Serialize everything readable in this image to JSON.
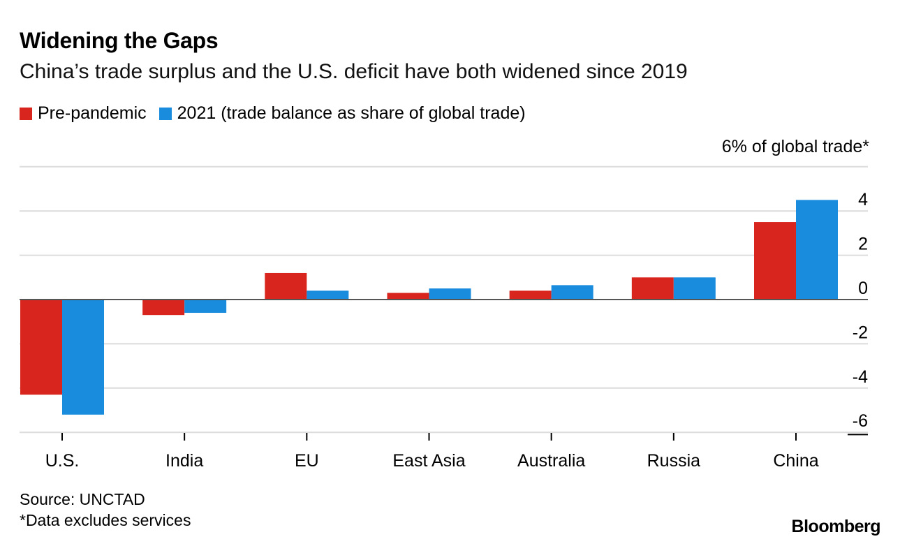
{
  "title": "Widening the Gaps",
  "subtitle": "China’s trade surplus and the U.S. deficit have both widened since 2019",
  "legend": [
    {
      "label": "Pre-pandemic",
      "color": "#d8261e"
    },
    {
      "label": "2021 (trade balance as share of global trade)",
      "color": "#1a8cdd"
    }
  ],
  "unit_label": "6% of global trade*",
  "source": "Source: UNCTAD",
  "footnote": "*Data excludes services",
  "brand": "Bloomberg",
  "chart_data": {
    "type": "bar",
    "categories": [
      "U.S.",
      "India",
      "EU",
      "East Asia",
      "Australia",
      "Russia",
      "China"
    ],
    "series": [
      {
        "name": "Pre-pandemic",
        "color": "#d8261e",
        "values": [
          -4.3,
          -0.7,
          1.2,
          0.3,
          0.4,
          1.0,
          3.5
        ]
      },
      {
        "name": "2021 (trade balance as share of global trade)",
        "color": "#1a8cdd",
        "values": [
          -5.2,
          -0.6,
          0.4,
          0.5,
          0.65,
          1.0,
          4.5
        ]
      }
    ],
    "yticks": [
      {
        "value": 4,
        "label": "4"
      },
      {
        "value": 2,
        "label": "2"
      },
      {
        "value": 0,
        "label": "0"
      },
      {
        "value": -2,
        "label": "-2"
      },
      {
        "value": -4,
        "label": "-4"
      },
      {
        "value": -6,
        "label": "-6"
      }
    ],
    "ylim": [
      -6,
      6
    ],
    "grid": true,
    "legend_position": "top-left"
  }
}
